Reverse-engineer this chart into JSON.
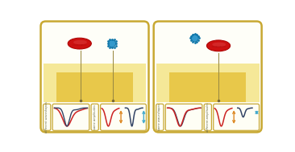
{
  "bg_color": "#ffffff",
  "panel_border_color": "#c8a832",
  "panel_bg": "#fefef8",
  "mem_outer_color": "#f5e898",
  "mem_inner_color": "#e8c84a",
  "rbc_color": "#cc1111",
  "rbc_edge": "#aa0000",
  "rbc_highlight": "#dd4444",
  "np_color": "#3399cc",
  "np_edge": "#1177aa",
  "needle_color": "#9a8a44",
  "subpanel_border": "#c8a832",
  "subpanel_bg": "#fefef5",
  "text_color": "#666644",
  "left_label1": "different waveshapes",
  "left_label2": "same amplitudes",
  "right_label1": "same waveshapes",
  "right_label2": "different amplitudes",
  "red_pulse": "#cc2222",
  "blue_pulse": "#334466",
  "orange_bar": "#dd8822",
  "cyan_bar": "#44aacc"
}
